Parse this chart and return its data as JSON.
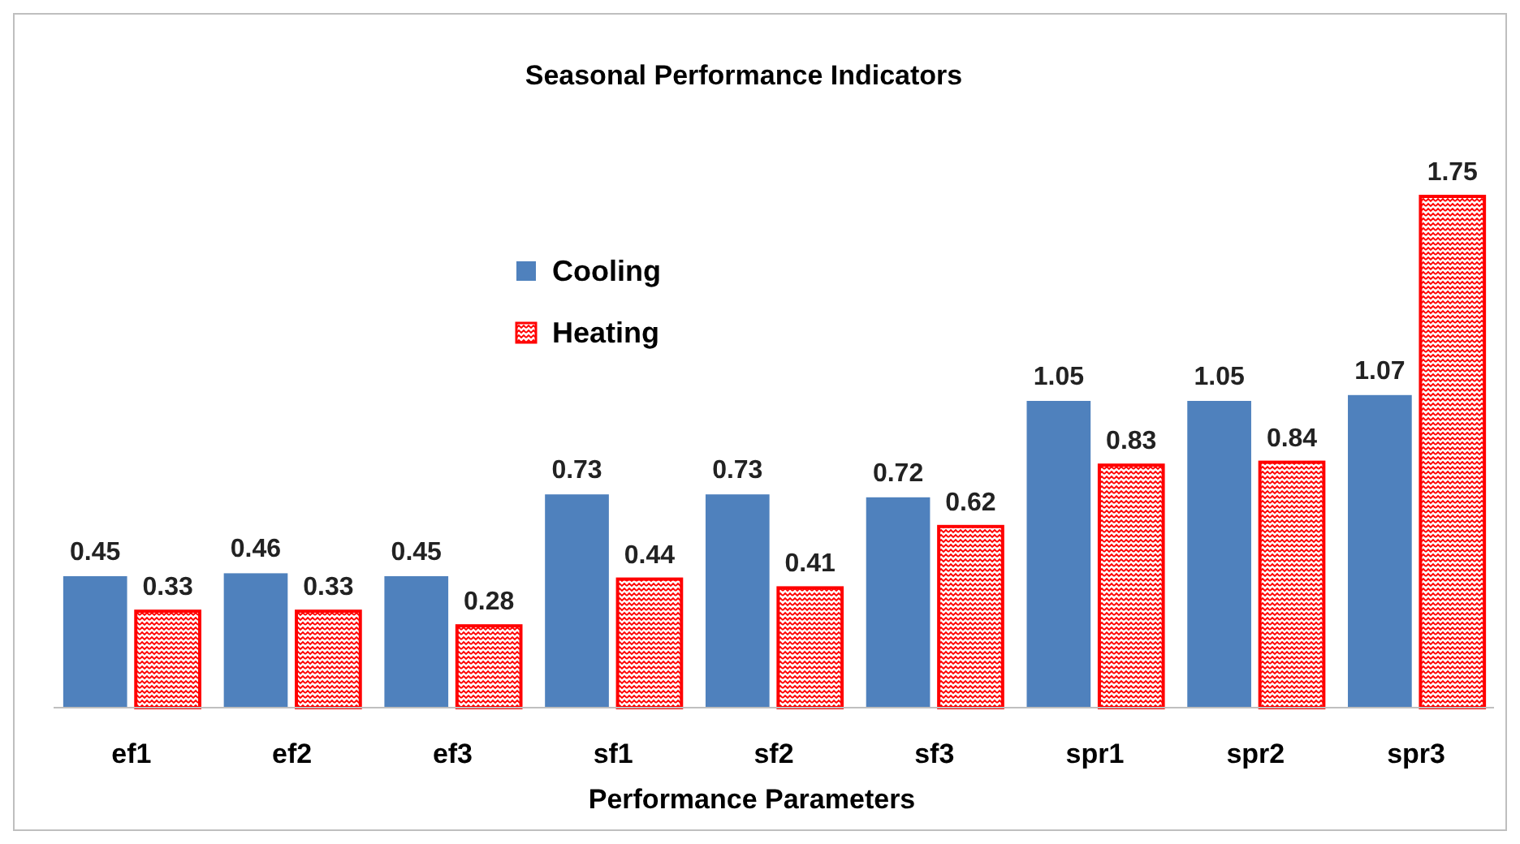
{
  "chart_data": {
    "type": "bar",
    "title": "Seasonal Performance Indicators",
    "xlabel": "Performance Parameters",
    "categories": [
      "ef1",
      "ef2",
      "ef3",
      "sf1",
      "sf2",
      "sf3",
      "spr1",
      "spr2",
      "spr3"
    ],
    "series": [
      {
        "name": "Cooling",
        "color": "#4f81bd",
        "values": [
          0.45,
          0.46,
          0.45,
          0.73,
          0.73,
          0.72,
          1.05,
          1.05,
          1.07
        ]
      },
      {
        "name": "Heating",
        "color": "#ff0000",
        "values": [
          0.33,
          0.33,
          0.28,
          0.44,
          0.41,
          0.62,
          0.83,
          0.84,
          1.75
        ]
      }
    ],
    "data_labels": true,
    "legend": "top left",
    "grid": false
  }
}
